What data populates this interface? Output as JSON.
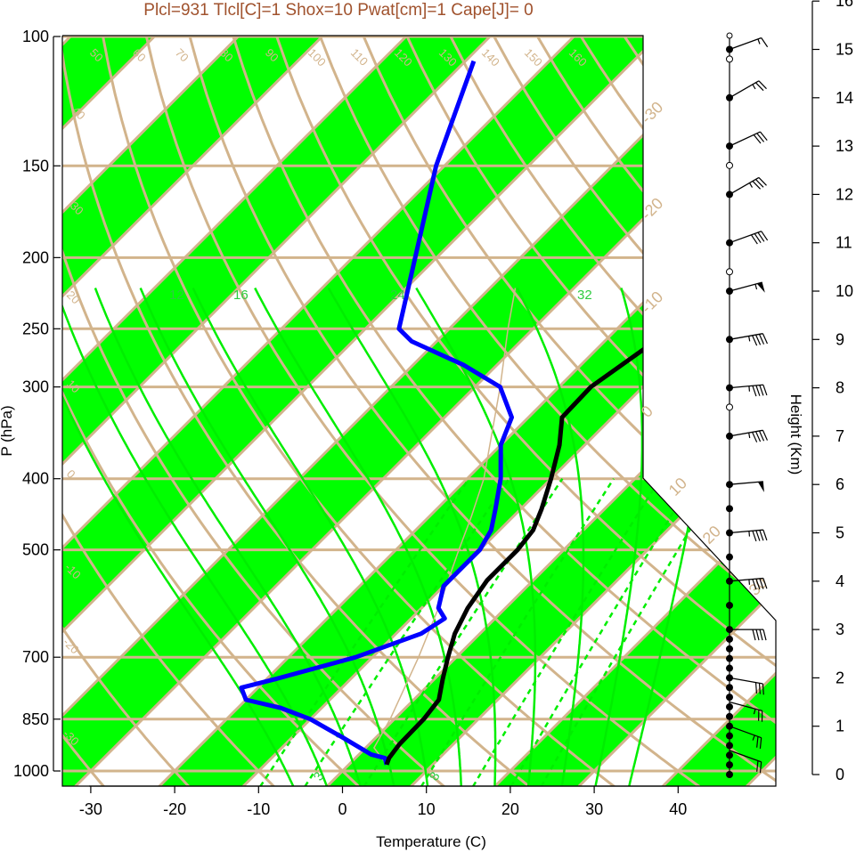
{
  "title": "Plcl=931 Tlcl[C]=1 Shox=10 Pwat[cm]=1 Cape[J]= 0",
  "colors": {
    "band": "#00ff00",
    "tan": "#d2b48c",
    "temperature": "#000000",
    "dewpoint": "#0000ff",
    "moist_adiabat": "#00ee00",
    "title": "#a0522d"
  },
  "chart_data": {
    "type": "skew-t",
    "title": "Plcl=931 Tlcl[C]=1 Shox=10 Pwat[cm]=1 Cape[J]= 0",
    "xlabel": "Temperature (C)",
    "ylabel": "P (hPa)",
    "y2label": "Height (Km)",
    "xlim": [
      -34,
      52
    ],
    "ylim": [
      1050,
      100
    ],
    "x_ticks": [
      -30,
      -20,
      -10,
      0,
      10,
      20,
      30,
      40
    ],
    "y_ticks": [
      100,
      150,
      200,
      250,
      300,
      400,
      500,
      700,
      850,
      1000
    ],
    "height_ticks": [
      0,
      1,
      2,
      3,
      4,
      5,
      6,
      7,
      8,
      9,
      10,
      11,
      12,
      13,
      14,
      15,
      16
    ],
    "isotherm_labels": [
      "-30",
      "-20",
      "-10",
      "0",
      "10",
      "20",
      "30"
    ],
    "dry_adiabat_labels": [
      "50",
      "60",
      "70",
      "80",
      "90",
      "100",
      "110",
      "120",
      "130",
      "140",
      "150",
      "160"
    ],
    "moist_adiabat_labels": [
      "12",
      "16",
      "24",
      "32"
    ],
    "mixing_ratio_labels": [
      "3",
      "8"
    ],
    "temperature": {
      "p": [
        980,
        960,
        920,
        850,
        800,
        750,
        700,
        650,
        600,
        550,
        500,
        470,
        440,
        400,
        360,
        330,
        300,
        260,
        230,
        200,
        180,
        160,
        145,
        130,
        120,
        110,
        104
      ],
      "t": [
        4.5,
        4,
        3.6,
        3.5,
        3,
        1,
        -1,
        -3,
        -4.5,
        -5.5,
        -5.5,
        -6,
        -7.5,
        -10,
        -13,
        -16,
        -16.2,
        -14,
        -11,
        -8,
        -6,
        -4.5,
        -3.5,
        -1.5,
        -0.5,
        -1,
        1
      ]
    },
    "dewpoint": {
      "p": [
        980,
        960,
        950,
        900,
        850,
        820,
        800,
        770,
        750,
        700,
        650,
        620,
        600,
        560,
        520,
        500,
        470,
        440,
        400,
        360,
        330,
        300,
        280,
        260,
        250,
        150,
        108
      ],
      "d": [
        4.5,
        3.5,
        1.5,
        -4,
        -10,
        -15,
        -20,
        -22,
        -19,
        -12,
        -7,
        -6,
        -8,
        -10,
        -10,
        -10,
        -11,
        -13,
        -16,
        -20,
        -22,
        -27,
        -34,
        -43,
        -46,
        -61,
        -69
      ]
    },
    "parcel": {
      "p": [
        980,
        930,
        850,
        700,
        600,
        500,
        450,
        400,
        300,
        250,
        220
      ],
      "t": [
        4.5,
        1,
        -0.5,
        -4.5,
        -8,
        -12.5,
        -15,
        -18,
        -27,
        -33,
        -37
      ]
    },
    "wind_levels_km": [
      0,
      0.2,
      0.4,
      0.6,
      0.8,
      1,
      1.2,
      1.4,
      1.6,
      1.8,
      2,
      2.2,
      2.4,
      2.6,
      2.8,
      3,
      3.5,
      4,
      4.5,
      5,
      5.5,
      6,
      7,
      8,
      9,
      10,
      11,
      12,
      13,
      14,
      15
    ],
    "barbs": [
      {
        "h": 0.5,
        "dir": 290,
        "spd": 20
      },
      {
        "h": 1,
        "dir": 290,
        "spd": 25
      },
      {
        "h": 1.5,
        "dir": 285,
        "spd": 25
      },
      {
        "h": 2,
        "dir": 280,
        "spd": 30
      },
      {
        "h": 3,
        "dir": 270,
        "spd": 40
      },
      {
        "h": 4,
        "dir": 265,
        "spd": 45
      },
      {
        "h": 5,
        "dir": 265,
        "spd": 45
      },
      {
        "h": 6,
        "dir": 265,
        "spd": 50
      },
      {
        "h": 7,
        "dir": 260,
        "spd": 45
      },
      {
        "h": 8,
        "dir": 265,
        "spd": 45
      },
      {
        "h": 9,
        "dir": 260,
        "spd": 45
      },
      {
        "h": 10,
        "dir": 255,
        "spd": 55
      },
      {
        "h": 11,
        "dir": 250,
        "spd": 40
      },
      {
        "h": 12,
        "dir": 240,
        "spd": 35
      },
      {
        "h": 13,
        "dir": 245,
        "spd": 30
      },
      {
        "h": 14,
        "dir": 240,
        "spd": 25
      },
      {
        "h": 15,
        "dir": 250,
        "spd": 15
      }
    ]
  }
}
